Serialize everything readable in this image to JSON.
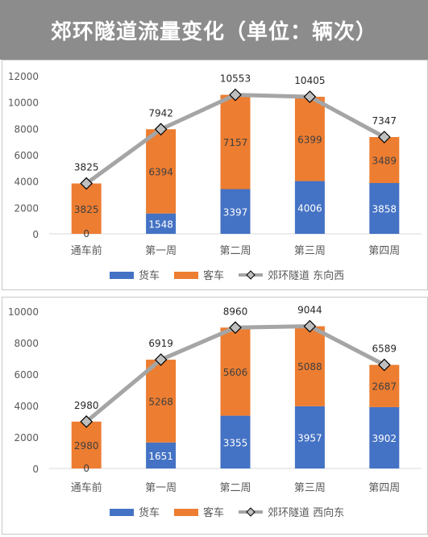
{
  "header": {
    "title": "郊环隧道流量变化（单位：辆次）"
  },
  "colors": {
    "truck": "#4472C4",
    "bus": "#ED7D31",
    "line": "#A5A5A5",
    "header_bg": "#8C8C8C"
  },
  "chart_data": [
    {
      "type": "bar",
      "stacked": true,
      "categories": [
        "通车前",
        "第一周",
        "第二周",
        "第三周",
        "第四周"
      ],
      "ylim": [
        0,
        12000
      ],
      "yticks": [
        0,
        2000,
        4000,
        6000,
        8000,
        10000,
        12000
      ],
      "grid": false,
      "legend": "bottom",
      "series": [
        {
          "name": "货车",
          "kind": "bar",
          "values": [
            0,
            1548,
            3397,
            4006,
            3858
          ]
        },
        {
          "name": "客车",
          "kind": "bar",
          "values": [
            3825,
            6394,
            7157,
            6399,
            3489
          ]
        },
        {
          "name": "郊环隧道 东向西",
          "kind": "line",
          "values": [
            3825,
            7942,
            10553,
            10405,
            7347
          ]
        }
      ]
    },
    {
      "type": "bar",
      "stacked": true,
      "categories": [
        "通车前",
        "第一周",
        "第二周",
        "第三周",
        "第四周"
      ],
      "ylim": [
        0,
        10000
      ],
      "yticks": [
        0,
        2000,
        4000,
        6000,
        8000,
        10000
      ],
      "grid": false,
      "legend": "bottom",
      "series": [
        {
          "name": "货车",
          "kind": "bar",
          "values": [
            0,
            1651,
            3355,
            3957,
            3902
          ]
        },
        {
          "name": "客车",
          "kind": "bar",
          "values": [
            2980,
            5268,
            5606,
            5088,
            2687
          ]
        },
        {
          "name": "郊环隧道 西向东",
          "kind": "line",
          "values": [
            2980,
            6919,
            8960,
            9044,
            6589
          ]
        }
      ]
    }
  ]
}
